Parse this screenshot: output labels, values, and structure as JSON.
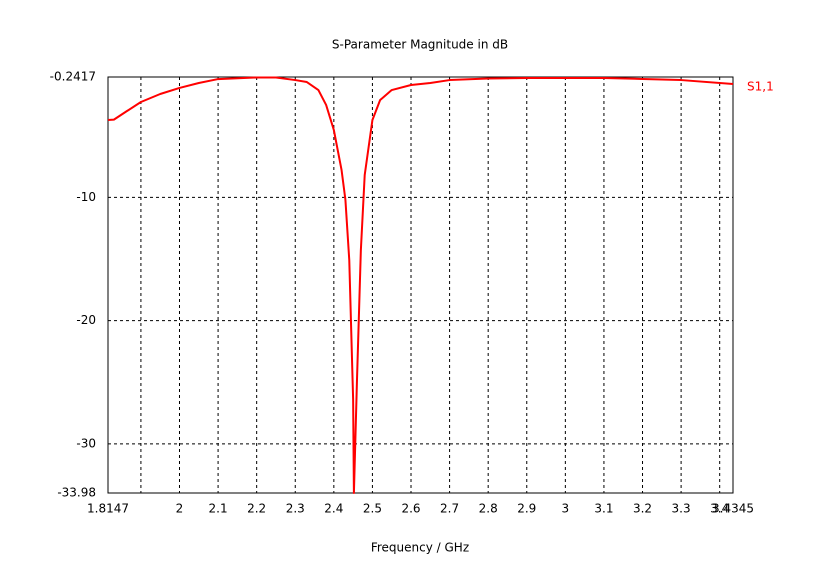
{
  "chart_data": {
    "type": "line",
    "title": "S-Parameter Magnitude in dB",
    "xlabel": "Frequency / GHz",
    "x": [
      1.8147,
      1.83,
      1.86,
      1.9,
      1.95,
      2.0,
      2.05,
      2.1,
      2.2,
      2.25,
      2.3,
      2.33,
      2.36,
      2.38,
      2.4,
      2.42,
      2.43,
      2.44,
      2.45,
      2.452,
      2.46,
      2.47,
      2.48,
      2.5,
      2.52,
      2.55,
      2.6,
      2.65,
      2.7,
      2.8,
      2.9,
      3.0,
      3.1,
      3.2,
      3.3,
      3.4345
    ],
    "series": [
      {
        "name": "S1,1",
        "color": "#ff0000",
        "values": [
          -3.73,
          -3.7,
          -3.08,
          -2.27,
          -1.62,
          -1.13,
          -0.73,
          -0.41,
          -0.28,
          -0.28,
          -0.49,
          -0.65,
          -1.3,
          -2.51,
          -4.54,
          -7.78,
          -10.2,
          -15.1,
          -26.4,
          -33.98,
          -24.8,
          -14.3,
          -8.19,
          -3.73,
          -2.11,
          -1.3,
          -0.89,
          -0.73,
          -0.49,
          -0.36,
          -0.32,
          -0.32,
          -0.32,
          -0.4,
          -0.49,
          -0.81
        ]
      }
    ],
    "xlim": [
      1.8147,
      3.4345
    ],
    "xticks": [
      1.8147,
      {
        "value": 1.9,
        "label": null
      },
      2,
      2.1,
      2.2,
      2.3,
      2.4,
      2.5,
      2.6,
      2.7,
      2.8,
      2.9,
      3,
      3.1,
      3.2,
      3.3,
      3.4,
      3.4345
    ],
    "ylim": [
      -33.98,
      -0.2417
    ],
    "yticks": [
      -33.98,
      -30,
      -20,
      -10,
      -0.2417
    ],
    "grid": true
  }
}
